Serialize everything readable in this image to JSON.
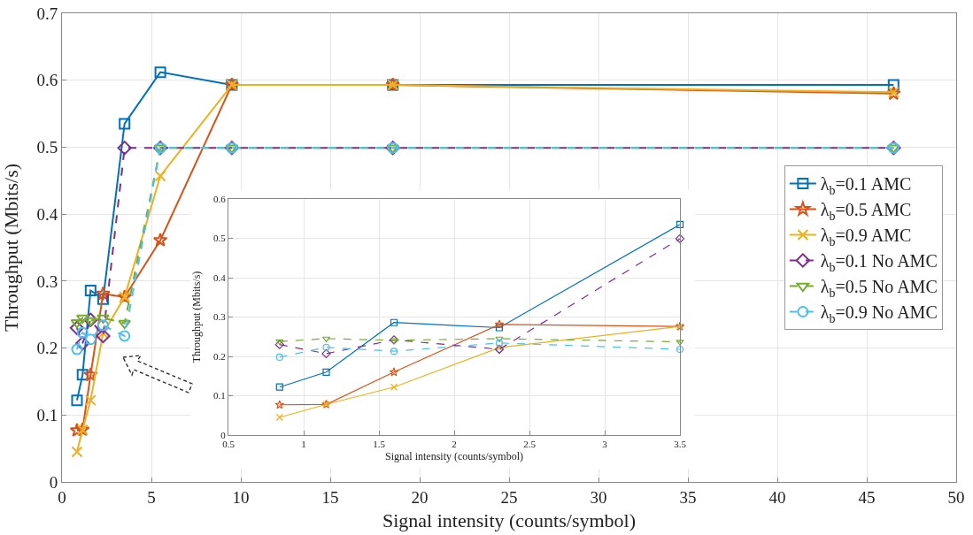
{
  "chart_data": [
    {
      "type": "line",
      "xlabel": "Signal intensity (counts/symbol)",
      "ylabel": "Throughput (Mbits/s)",
      "x": [
        0.84,
        1.15,
        1.6,
        2.3,
        3.5,
        5.5,
        9.5,
        18.5,
        46.5
      ],
      "xlim": [
        0,
        50
      ],
      "xticks": [
        0,
        5,
        10,
        15,
        20,
        25,
        30,
        35,
        40,
        45,
        50
      ],
      "ylim": [
        0,
        0.7
      ],
      "yticks": [
        0,
        0.1,
        0.2,
        0.3,
        0.4,
        0.5,
        0.6,
        0.7
      ],
      "grid": true,
      "legend": "right",
      "series": [
        {
          "name": "λ$_{b}$=0.1 AMC",
          "color": "#0072bd",
          "marker": "square",
          "line_style": "solid",
          "values": [
            0.122,
            0.16,
            0.286,
            0.273,
            0.535,
            0.612,
            0.593,
            0.593,
            0.593
          ]
        },
        {
          "name": "λ$_{b}$=0.5 AMC",
          "color": "#d95319",
          "marker": "star",
          "line_style": "solid",
          "values": [
            0.077,
            0.078,
            0.16,
            0.281,
            0.276,
            0.361,
            0.593,
            0.593,
            0.58
          ]
        },
        {
          "name": "λ$_{b}$=0.9 AMC",
          "color": "#edb120",
          "marker": "cross",
          "line_style": "solid",
          "values": [
            0.045,
            0.078,
            0.122,
            0.222,
            0.276,
            0.457,
            0.593,
            0.593,
            0.582
          ]
        },
        {
          "name": "λ$_{b}$=0.1 No AMC",
          "color": "#7e2f8e",
          "marker": "diamond",
          "line_style": "dashed",
          "values": [
            0.23,
            0.207,
            0.242,
            0.218,
            0.499,
            0.499,
            0.499,
            0.499,
            0.499
          ]
        },
        {
          "name": "λ$_{b}$=0.5 No AMC",
          "color": "#77ac30",
          "marker": "triangle",
          "line_style": "dashed",
          "values": [
            0.238,
            0.245,
            0.241,
            0.245,
            0.237,
            0.499,
            0.499,
            0.499,
            0.499
          ]
        },
        {
          "name": "λ$_{b}$=0.9 No AMC",
          "color": "#4dbeee",
          "marker": "circle",
          "line_style": "dashed",
          "values": [
            0.198,
            0.223,
            0.213,
            0.234,
            0.218,
            0.499,
            0.499,
            0.499,
            0.499
          ]
        }
      ]
    },
    {
      "type": "line",
      "xlabel": "Signal intensity (counts/symbol)",
      "ylabel": "Throughput (Mbits/s)",
      "x": [
        0.84,
        1.15,
        1.6,
        2.3,
        3.5
      ],
      "xlim": [
        0.5,
        3.5
      ],
      "xticks": [
        0.5,
        1,
        1.5,
        2,
        2.5,
        3,
        3.5
      ],
      "ylim": [
        0,
        0.6
      ],
      "yticks": [
        0,
        0.1,
        0.2,
        0.3,
        0.4,
        0.5,
        0.6
      ],
      "grid": true,
      "series": [
        {
          "color": "#0072bd",
          "marker": "square",
          "line_style": "solid",
          "values": [
            0.122,
            0.16,
            0.286,
            0.273,
            0.535
          ]
        },
        {
          "color": "#d95319",
          "marker": "star",
          "line_style": "solid",
          "values": [
            0.077,
            0.078,
            0.16,
            0.281,
            0.276
          ]
        },
        {
          "color": "#edb120",
          "marker": "cross",
          "line_style": "solid",
          "values": [
            0.045,
            0.078,
            0.122,
            0.222,
            0.276
          ]
        },
        {
          "color": "#7e2f8e",
          "marker": "diamond",
          "line_style": "dashed",
          "values": [
            0.23,
            0.207,
            0.242,
            0.218,
            0.499
          ]
        },
        {
          "color": "#77ac30",
          "marker": "triangle",
          "line_style": "dashed",
          "values": [
            0.238,
            0.245,
            0.241,
            0.245,
            0.237
          ]
        },
        {
          "color": "#4dbeee",
          "marker": "circle",
          "line_style": "dashed",
          "values": [
            0.198,
            0.223,
            0.213,
            0.234,
            0.218
          ]
        }
      ]
    }
  ]
}
